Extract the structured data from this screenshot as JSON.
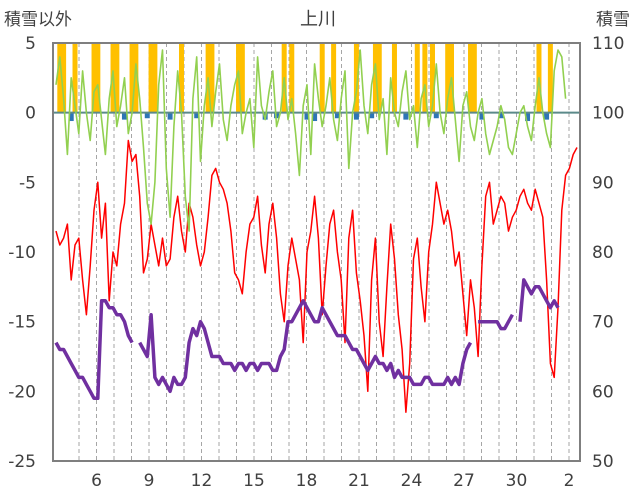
{
  "chart_data": {
    "type": "line",
    "title": "上川",
    "left_axis": {
      "label": "積雪以外",
      "ylim": [
        -25,
        5
      ],
      "ticks": [
        5,
        0,
        -5,
        -10,
        -15,
        -20,
        -25
      ]
    },
    "right_axis": {
      "label": "積雪",
      "ylim": [
        50,
        110
      ],
      "ticks": [
        110,
        100,
        90,
        80,
        70,
        60,
        50
      ]
    },
    "x_tick_labels": [
      "6",
      "9",
      "12",
      "15",
      "18",
      "21",
      "24",
      "27",
      "30",
      "2"
    ],
    "grid": "vertical dashed",
    "series": [
      {
        "color": "#ff0000",
        "axis": "left",
        "values": [
          -8.5,
          -9.5,
          -9.0,
          -8.0,
          -12.0,
          -9.5,
          -9.0,
          -12.0,
          -14.5,
          -11.0,
          -7.0,
          -5.0,
          -9.0,
          -6.5,
          -13.5,
          -10.0,
          -11.0,
          -8.0,
          -6.5,
          -2.0,
          -3.5,
          -3.0,
          -6.0,
          -11.5,
          -10.5,
          -8.0,
          -9.5,
          -11.0,
          -9.0,
          -11.0,
          -10.5,
          -7.5,
          -6.0,
          -8.5,
          -10.0,
          -6.5,
          -7.5,
          -9.5,
          -11.0,
          -10.0,
          -7.5,
          -4.5,
          -4.0,
          -5.0,
          -5.5,
          -6.5,
          -8.5,
          -11.5,
          -12.0,
          -13.0,
          -10.0,
          -8.0,
          -7.5,
          -6.0,
          -9.5,
          -11.5,
          -8.0,
          -6.5,
          -9.0,
          -13.0,
          -15.0,
          -11.0,
          -9.0,
          -10.5,
          -12.0,
          -16.5,
          -10.0,
          -8.5,
          -6.0,
          -9.0,
          -14.5,
          -11.0,
          -8.0,
          -7.0,
          -10.0,
          -12.0,
          -16.5,
          -9.0,
          -7.0,
          -11.5,
          -13.5,
          -16.0,
          -20.0,
          -12.0,
          -9.0,
          -15.0,
          -17.5,
          -12.5,
          -8.0,
          -10.5,
          -14.5,
          -17.0,
          -21.5,
          -18.0,
          -10.5,
          -9.0,
          -12.5,
          -15.0,
          -10.0,
          -8.0,
          -5.0,
          -6.5,
          -8.0,
          -7.0,
          -8.5,
          -11.0,
          -10.0,
          -13.0,
          -16.0,
          -12.0,
          -14.0,
          -17.5,
          -11.0,
          -6.0,
          -5.0,
          -8.0,
          -7.0,
          -6.0,
          -6.5,
          -8.5,
          -7.5,
          -7.0,
          -6.0,
          -5.5,
          -6.5,
          -7.0,
          -5.5,
          -6.5,
          -7.5,
          -12.0,
          -18.0,
          -19.0,
          -14.0,
          -7.0,
          -4.5,
          -4.0,
          -3.0,
          -2.5
        ]
      },
      {
        "color": "#7030a0",
        "axis": "right",
        "values": [
          67,
          66,
          66,
          65,
          64,
          63,
          62,
          62,
          61,
          60,
          59,
          59,
          73,
          73,
          72,
          72,
          71,
          71,
          70,
          68,
          67,
          null,
          67,
          66,
          65,
          71,
          62,
          61,
          62,
          61,
          60,
          62,
          61,
          61,
          62,
          67,
          69,
          68,
          70,
          69,
          67,
          65,
          65,
          65,
          64,
          64,
          64,
          63,
          64,
          64,
          63,
          64,
          64,
          63,
          64,
          64,
          64,
          63,
          63,
          65,
          66,
          70,
          70,
          71,
          72,
          73,
          72,
          71,
          70,
          70,
          72,
          71,
          70,
          69,
          68,
          68,
          68,
          67,
          66,
          66,
          65,
          64,
          63,
          64,
          65,
          64,
          64,
          63,
          64,
          62,
          63,
          62,
          62,
          62,
          61,
          61,
          61,
          62,
          62,
          61,
          61,
          61,
          61,
          62,
          61,
          62,
          61,
          64,
          66,
          67,
          null,
          70,
          70,
          70,
          70,
          70,
          70,
          69,
          69,
          70,
          71,
          null,
          70,
          76,
          75,
          74,
          75,
          75,
          74,
          73,
          72,
          73,
          72
        ]
      },
      {
        "color": "#92d050",
        "axis": "left",
        "values": [
          2.0,
          4.0,
          1.0,
          -3.0,
          2.5,
          0.5,
          -1.5,
          3.0,
          0.0,
          -2.0,
          1.5,
          2.0,
          -0.5,
          -3.0,
          1.0,
          3.0,
          -1.0,
          0.5,
          2.5,
          -1.5,
          0.0,
          3.5,
          1.0,
          -2.5,
          -6.5,
          -8.0,
          -5.0,
          2.0,
          4.5,
          -4.0,
          -7.5,
          -1.0,
          3.0,
          0.0,
          -6.0,
          -8.5,
          1.0,
          4.0,
          -3.5,
          0.5,
          2.5,
          -1.0,
          1.5,
          3.5,
          -0.5,
          -2.0,
          0.5,
          2.0,
          3.0,
          -1.5,
          0.0,
          1.0,
          -2.5,
          4.0,
          0.5,
          -0.5,
          1.5,
          3.0,
          -1.0,
          0.0,
          2.5,
          -0.5,
          1.0,
          -1.5,
          -4.5,
          0.5,
          2.0,
          -3.0,
          3.5,
          1.0,
          -1.0,
          0.5,
          2.5,
          -0.5,
          -2.0,
          1.0,
          3.0,
          -4.0,
          0.0,
          1.5,
          4.5,
          0.5,
          -1.5,
          2.0,
          3.5,
          -0.5,
          1.0,
          -3.0,
          2.5,
          0.0,
          -1.0,
          1.5,
          3.0,
          -0.5,
          0.5,
          -2.5,
          1.0,
          2.0,
          -1.0,
          0.5,
          3.5,
          0.0,
          -1.5,
          1.0,
          2.5,
          -0.5,
          -3.5,
          0.5,
          1.5,
          -1.0,
          -2.0,
          0.0,
          1.0,
          -1.5,
          -3.0,
          -2.0,
          -1.0,
          0.5,
          -0.5,
          -2.5,
          -3.0,
          -1.5,
          0.0,
          0.5,
          -1.0,
          -2.0,
          0.5,
          2.5,
          0.0,
          -1.5,
          -2.5,
          3.0,
          4.5,
          4.0,
          1.0
        ]
      }
    ],
    "bars": [
      {
        "color": "#ffc000",
        "axis": "left",
        "positions": [
          1,
          2,
          5,
          10,
          11,
          15,
          16,
          20,
          21,
          25,
          26,
          33,
          40,
          41,
          48,
          49,
          60,
          62,
          70,
          73,
          79,
          84,
          85,
          89,
          95,
          97,
          99,
          103,
          104,
          109,
          110,
          127,
          130
        ],
        "values": [
          5,
          5,
          5,
          5,
          5,
          5,
          5,
          5,
          5,
          5,
          5,
          5,
          5,
          5,
          5,
          5,
          5,
          5,
          5,
          5,
          5,
          5,
          5,
          5,
          5,
          5,
          5,
          5,
          5,
          5,
          5,
          5,
          5
        ]
      },
      {
        "color": "#2e75b6",
        "axis": "left",
        "positions": [
          4,
          18,
          24,
          30,
          37,
          55,
          58,
          66,
          68,
          74,
          79,
          83,
          92,
          100,
          112,
          117,
          124,
          129
        ],
        "values": [
          -0.6,
          -0.5,
          -0.4,
          -0.5,
          -0.4,
          -0.5,
          -0.4,
          -0.5,
          -0.6,
          -0.4,
          -0.5,
          -0.4,
          -0.5,
          -0.4,
          -0.5,
          -0.4,
          -0.6,
          -0.5
        ]
      }
    ]
  }
}
